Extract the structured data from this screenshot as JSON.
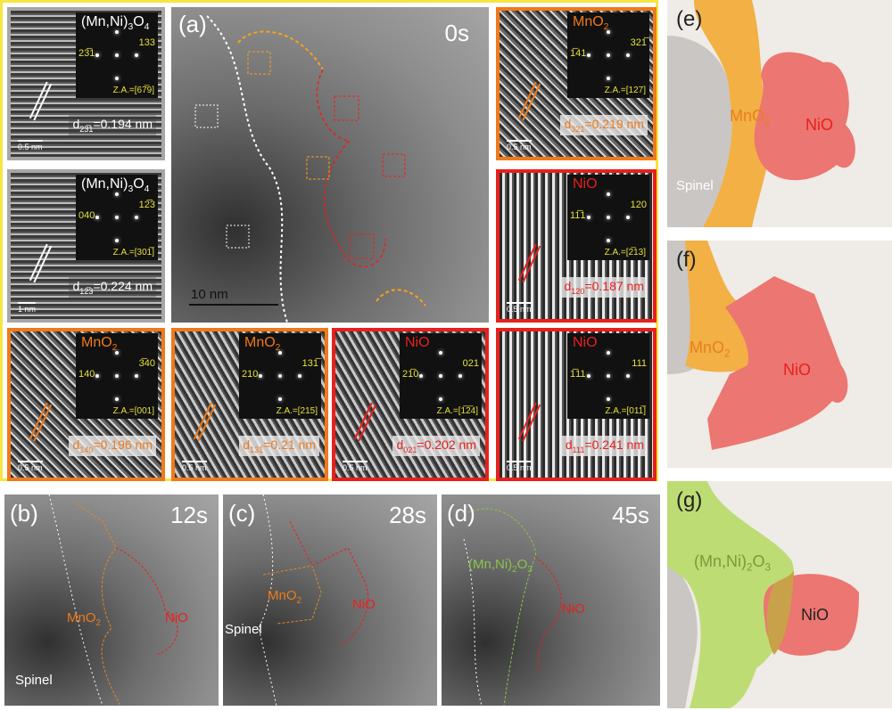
{
  "colors": {
    "frame": "#f5e642",
    "mno2": "#f07a1a",
    "nio": "#e8201c",
    "spinel_border": "#a0a0a0",
    "green": "#7fb03a"
  },
  "hrtem": [
    {
      "border": "#a6a6a6",
      "phase": [
        [
          "(Mn,Ni)",
          ""
        ],
        [
          "3",
          "sub"
        ],
        [
          "O",
          ""
        ],
        [
          "4",
          "sub"
        ]
      ],
      "phase_color": "#ffffff",
      "spots": [
        "23̅1",
        "133"
      ],
      "za": "Z.A.=[67̅9]",
      "d": [
        "d",
        "23̅1",
        "=0.194 nm"
      ],
      "d_color": "#ffffff",
      "scale": "0.5 nm",
      "style": ""
    },
    {
      "border": "#a6a6a6",
      "phase": [
        [
          "(Mn,Ni)",
          ""
        ],
        [
          "3",
          "sub"
        ],
        [
          "O",
          ""
        ],
        [
          "4",
          "sub"
        ]
      ],
      "phase_color": "#ffffff",
      "spots": [
        "040",
        "12̅3"
      ],
      "za": "Z.A.=[301̅]",
      "d": [
        "d",
        "12̅3",
        "=0.224 nm"
      ],
      "d_color": "#ffffff",
      "scale": "1 nm",
      "style": ""
    },
    {
      "border": "#f07a1a",
      "phase": [
        [
          "MnO",
          ""
        ],
        [
          "2",
          "sub"
        ]
      ],
      "phase_color": "#f07a1a",
      "spots": [
        "1̅41",
        "321̅"
      ],
      "za": "Z.A.=[127]",
      "d": [
        "d",
        "321",
        "=0.219 nm"
      ],
      "d_color": "#f07a1a",
      "scale": "0.5 nm",
      "style": "g"
    },
    {
      "border": "#e8201c",
      "phase": [
        [
          "NiO",
          ""
        ]
      ],
      "phase_color": "#e8201c",
      "spots": [
        "11̅1",
        "120"
      ],
      "za": "Z.A.=[2̅13]",
      "d": [
        "d",
        "120",
        "=0.187 nm"
      ],
      "d_color": "#e8201c",
      "scale": "0.5 nm",
      "style": "v"
    },
    {
      "border": "#f07a1a",
      "phase": [
        [
          "MnO",
          ""
        ],
        [
          "2",
          "sub"
        ]
      ],
      "phase_color": "#f07a1a",
      "spots": [
        "140",
        "3̅40"
      ],
      "za": "Z.A.=[001]",
      "d": [
        "d",
        "140",
        "=0.196 nm"
      ],
      "d_color": "#f07a1a",
      "scale": "0.5 nm",
      "style": "g"
    },
    {
      "border": "#f07a1a",
      "phase": [
        [
          "MnO",
          ""
        ],
        [
          "2",
          "sub"
        ]
      ],
      "phase_color": "#f07a1a",
      "spots": [
        "210",
        "131̅"
      ],
      "za": "Z.A.=[215]",
      "d": [
        "d",
        "131̅",
        "=0.21 nm"
      ],
      "d_color": "#f07a1a",
      "scale": "0.5 nm",
      "style": "d"
    },
    {
      "border": "#e8201c",
      "phase": [
        [
          "NiO",
          ""
        ]
      ],
      "phase_color": "#e8201c",
      "spots": [
        "21̅0",
        "021"
      ],
      "za": "Z.A.=[1̅2̅4]",
      "d": [
        "d",
        "021",
        "=0.202 nm"
      ],
      "d_color": "#e8201c",
      "scale": "0.5 nm",
      "style": "d"
    },
    {
      "border": "#e8201c",
      "phase": [
        [
          "NiO",
          ""
        ]
      ],
      "phase_color": "#e8201c",
      "spots": [
        "1̅11",
        "111"
      ],
      "za": "Z.A.=[011̅]",
      "d": [
        "d",
        "111",
        "=0.241 nm"
      ],
      "d_color": "#e8201c",
      "scale": "0.5 nm",
      "style": "v"
    }
  ],
  "panel_a": {
    "label": "(a)",
    "time": "0s",
    "scale": "10 nm"
  },
  "panel_b": {
    "label": "(b)",
    "time": "12s",
    "mno2": "MnO",
    "mno2_sub": "2",
    "nio": "NiO",
    "spinel": "Spinel"
  },
  "panel_c": {
    "label": "(c)",
    "time": "28s",
    "mno2": "MnO",
    "mno2_sub": "2",
    "nio": "NiO",
    "spinel": "Spinel"
  },
  "panel_d": {
    "label": "(d)",
    "time": "45s",
    "phase": "(Mn,Ni)",
    "phase_sub": "2",
    "phase2": "O",
    "phase2_sub": "3",
    "nio": "NiO"
  },
  "panel_e": {
    "label": "(e)",
    "mno2": "MnO",
    "mno2_sub": "2",
    "nio": "NiO",
    "spinel": "Spinel"
  },
  "panel_f": {
    "label": "(f)",
    "mno2": "MnO",
    "mno2_sub": "2",
    "nio": "NiO"
  },
  "panel_g": {
    "label": "(g)",
    "phase": "(Mn,Ni)",
    "phase_sub": "2",
    "phase2": "O",
    "phase2_sub": "3",
    "nio": "NiO"
  }
}
